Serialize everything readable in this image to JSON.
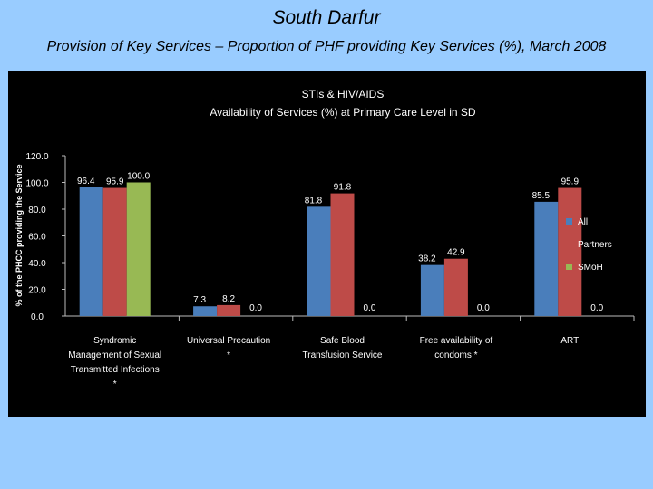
{
  "slide": {
    "title": "South Darfur",
    "subtitle": "Provision of Key Services – Proportion of PHF providing Key Services (%), March 2008"
  },
  "chart_data": {
    "type": "bar",
    "title_lines": [
      "STIs & HIV/AIDS",
      "Availability of Services (%) at Primary Care Level in SD"
    ],
    "ylabel": "% of the PHCC providing the Service",
    "ylim": [
      0,
      120
    ],
    "yticks": [
      "0.0",
      "20.0",
      "40.0",
      "60.0",
      "80.0",
      "100.0",
      "120.0"
    ],
    "grid": false,
    "legend_position": "right",
    "categories": [
      [
        "Syndromic",
        "Management of Sexual",
        "Transmitted Infections",
        "*"
      ],
      [
        "Universal Precaution",
        "*"
      ],
      [
        "Safe Blood",
        "Transfusion Service"
      ],
      [
        "Free availability of",
        "condoms *"
      ],
      [
        "ART"
      ]
    ],
    "series": [
      {
        "name": "All",
        "color": "#4a7ebb",
        "values": [
          96.4,
          7.3,
          81.8,
          38.2,
          85.5
        ],
        "labels": [
          "96.4",
          "7.3",
          "81.8",
          "38.2",
          "85.5"
        ]
      },
      {
        "name": "Partners",
        "color": "#be4b48",
        "values": [
          95.9,
          8.2,
          91.8,
          42.9,
          95.9
        ],
        "labels": [
          "95.9",
          "8.2",
          "91.8",
          "42.9",
          "95.9"
        ]
      },
      {
        "name": "SMoH",
        "color": "#98b954",
        "values": [
          100.0,
          0.0,
          0.0,
          0.0,
          0.0
        ],
        "labels": [
          "100.0",
          "0.0",
          "0.0",
          "0.0",
          "0.0"
        ]
      }
    ]
  }
}
